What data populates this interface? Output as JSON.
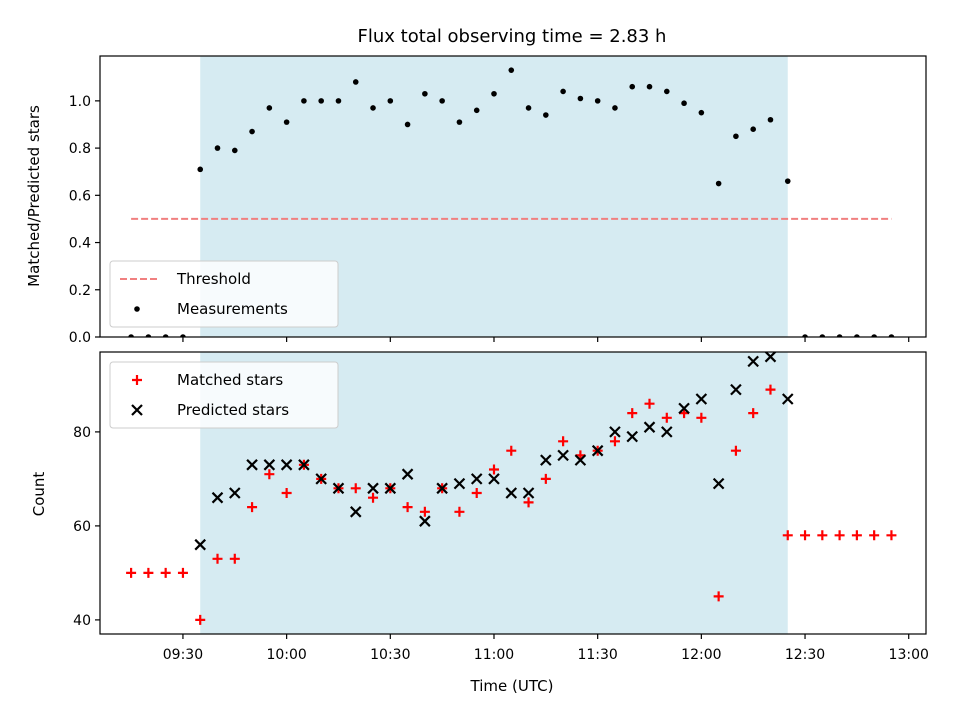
{
  "chart_data": [
    {
      "type": "scatter",
      "title": "Flux total observing time = 2.83 h",
      "ylabel": "Matched/Predicted stars",
      "xlabel": "",
      "ylim": [
        0,
        1.19
      ],
      "y_ticks": [
        "0.0",
        "0.2",
        "0.4",
        "0.6",
        "0.8",
        "1.0"
      ],
      "shaded_span": [
        "09:35",
        "12:25"
      ],
      "shaded_color": "#add8e6",
      "legend_position": "lower left",
      "series": [
        {
          "name": "Threshold",
          "kind": "dashed-line",
          "color": "#f08080",
          "points": [
            [
              "09:15",
              0.5
            ],
            [
              "12:55",
              0.5
            ]
          ]
        },
        {
          "name": "Measurements",
          "kind": "dots",
          "color": "#000000",
          "points": [
            [
              "09:15",
              0.0
            ],
            [
              "09:20",
              0.0
            ],
            [
              "09:25",
              0.0
            ],
            [
              "09:30",
              0.0
            ],
            [
              "09:35",
              0.71
            ],
            [
              "09:40",
              0.8
            ],
            [
              "09:45",
              0.79
            ],
            [
              "09:50",
              0.87
            ],
            [
              "09:55",
              0.97
            ],
            [
              "10:00",
              0.91
            ],
            [
              "10:05",
              1.0
            ],
            [
              "10:10",
              1.0
            ],
            [
              "10:15",
              1.0
            ],
            [
              "10:20",
              1.08
            ],
            [
              "10:25",
              0.97
            ],
            [
              "10:30",
              1.0
            ],
            [
              "10:35",
              0.9
            ],
            [
              "10:40",
              1.03
            ],
            [
              "10:45",
              1.0
            ],
            [
              "10:50",
              0.91
            ],
            [
              "10:55",
              0.96
            ],
            [
              "11:00",
              1.03
            ],
            [
              "11:05",
              1.13
            ],
            [
              "11:10",
              0.97
            ],
            [
              "11:15",
              0.94
            ],
            [
              "11:20",
              1.04
            ],
            [
              "11:25",
              1.01
            ],
            [
              "11:30",
              1.0
            ],
            [
              "11:35",
              0.97
            ],
            [
              "11:40",
              1.06
            ],
            [
              "11:45",
              1.06
            ],
            [
              "11:50",
              1.04
            ],
            [
              "11:55",
              0.99
            ],
            [
              "12:00",
              0.95
            ],
            [
              "12:05",
              0.65
            ],
            [
              "12:10",
              0.85
            ],
            [
              "12:15",
              0.88
            ],
            [
              "12:20",
              0.92
            ],
            [
              "12:25",
              0.66
            ],
            [
              "12:30",
              0.0
            ],
            [
              "12:35",
              0.0
            ],
            [
              "12:40",
              0.0
            ],
            [
              "12:45",
              0.0
            ],
            [
              "12:50",
              0.0
            ],
            [
              "12:55",
              0.0
            ]
          ]
        }
      ]
    },
    {
      "type": "scatter",
      "xlabel": "Time (UTC)",
      "ylabel": "Count",
      "ylim": [
        37,
        97
      ],
      "y_ticks": [
        "40",
        "60",
        "80"
      ],
      "x_ticks": [
        "09:30",
        "10:00",
        "10:30",
        "11:00",
        "11:30",
        "12:00",
        "12:30",
        "13:00"
      ],
      "xlim": [
        "09:06",
        "13:05"
      ],
      "shaded_span": [
        "09:35",
        "12:25"
      ],
      "shaded_color": "#add8e6",
      "legend_position": "upper left",
      "series": [
        {
          "name": "Matched stars",
          "marker": "plus",
          "color": "#ff0000",
          "points": [
            [
              "09:15",
              50
            ],
            [
              "09:20",
              50
            ],
            [
              "09:25",
              50
            ],
            [
              "09:30",
              50
            ],
            [
              "09:35",
              40
            ],
            [
              "09:40",
              53
            ],
            [
              "09:45",
              53
            ],
            [
              "09:50",
              64
            ],
            [
              "09:55",
              71
            ],
            [
              "10:00",
              67
            ],
            [
              "10:05",
              73
            ],
            [
              "10:10",
              70
            ],
            [
              "10:15",
              68
            ],
            [
              "10:20",
              68
            ],
            [
              "10:25",
              66
            ],
            [
              "10:30",
              68
            ],
            [
              "10:35",
              64
            ],
            [
              "10:40",
              63
            ],
            [
              "10:45",
              68
            ],
            [
              "10:50",
              63
            ],
            [
              "10:55",
              67
            ],
            [
              "11:00",
              72
            ],
            [
              "11:05",
              76
            ],
            [
              "11:10",
              65
            ],
            [
              "11:15",
              70
            ],
            [
              "11:20",
              78
            ],
            [
              "11:25",
              75
            ],
            [
              "11:30",
              76
            ],
            [
              "11:35",
              78
            ],
            [
              "11:40",
              84
            ],
            [
              "11:45",
              86
            ],
            [
              "11:50",
              83
            ],
            [
              "11:55",
              84
            ],
            [
              "12:00",
              83
            ],
            [
              "12:05",
              45
            ],
            [
              "12:10",
              76
            ],
            [
              "12:15",
              84
            ],
            [
              "12:20",
              89
            ],
            [
              "12:25",
              58
            ],
            [
              "12:30",
              58
            ],
            [
              "12:35",
              58
            ],
            [
              "12:40",
              58
            ],
            [
              "12:45",
              58
            ],
            [
              "12:50",
              58
            ],
            [
              "12:55",
              58
            ]
          ]
        },
        {
          "name": "Predicted stars",
          "marker": "x",
          "color": "#000000",
          "points": [
            [
              "09:35",
              56
            ],
            [
              "09:40",
              66
            ],
            [
              "09:45",
              67
            ],
            [
              "09:50",
              73
            ],
            [
              "09:55",
              73
            ],
            [
              "10:00",
              73
            ],
            [
              "10:05",
              73
            ],
            [
              "10:10",
              70
            ],
            [
              "10:15",
              68
            ],
            [
              "10:20",
              63
            ],
            [
              "10:25",
              68
            ],
            [
              "10:30",
              68
            ],
            [
              "10:35",
              71
            ],
            [
              "10:40",
              61
            ],
            [
              "10:45",
              68
            ],
            [
              "10:50",
              69
            ],
            [
              "10:55",
              70
            ],
            [
              "11:00",
              70
            ],
            [
              "11:05",
              67
            ],
            [
              "11:10",
              67
            ],
            [
              "11:15",
              74
            ],
            [
              "11:20",
              75
            ],
            [
              "11:25",
              74
            ],
            [
              "11:30",
              76
            ],
            [
              "11:35",
              80
            ],
            [
              "11:40",
              79
            ],
            [
              "11:45",
              81
            ],
            [
              "11:50",
              80
            ],
            [
              "11:55",
              85
            ],
            [
              "12:00",
              87
            ],
            [
              "12:05",
              69
            ],
            [
              "12:10",
              89
            ],
            [
              "12:15",
              95
            ],
            [
              "12:20",
              96
            ],
            [
              "12:25",
              87
            ]
          ]
        }
      ]
    }
  ]
}
